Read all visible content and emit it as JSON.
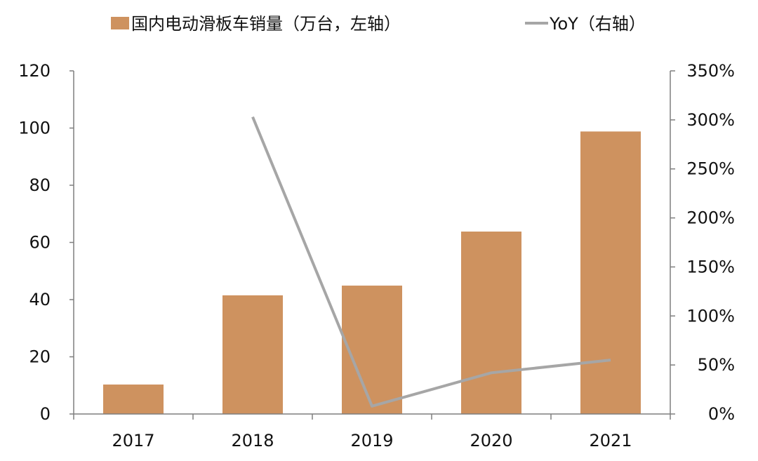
{
  "chart_data": {
    "type": "bar",
    "categories": [
      "2017",
      "2018",
      "2019",
      "2020",
      "2021"
    ],
    "series": [
      {
        "name": "国内电动滑板车销量（万台，左轴）",
        "type": "bar",
        "axis": "left",
        "color": "#CE925F",
        "values": [
          10.3,
          41.5,
          44.9,
          63.8,
          98.8
        ]
      },
      {
        "name": "YoY（右轴）",
        "type": "line",
        "axis": "right",
        "color": "#A6A6A6",
        "values": [
          null,
          3.03,
          0.08,
          0.42,
          0.55
        ]
      }
    ],
    "left_axis": {
      "min": 0,
      "max": 120,
      "ticks": [
        0,
        20,
        40,
        60,
        80,
        100,
        120
      ],
      "tick_labels": [
        "0",
        "20",
        "40",
        "60",
        "80",
        "100",
        "120"
      ]
    },
    "right_axis": {
      "min": 0,
      "max": 3.5,
      "ticks": [
        0,
        0.5,
        1,
        1.5,
        2,
        2.5,
        3,
        3.5
      ],
      "tick_labels": [
        "0%",
        "50%",
        "100%",
        "150%",
        "200%",
        "250%",
        "300%",
        "350%"
      ]
    },
    "legend": {
      "position": "top",
      "items": [
        {
          "label": "国内电动滑板车销量（万台，左轴）",
          "marker": "square",
          "color": "#CE925F"
        },
        {
          "label": "YoY（右轴）",
          "marker": "line",
          "color": "#A6A6A6"
        }
      ]
    },
    "grid": false
  }
}
